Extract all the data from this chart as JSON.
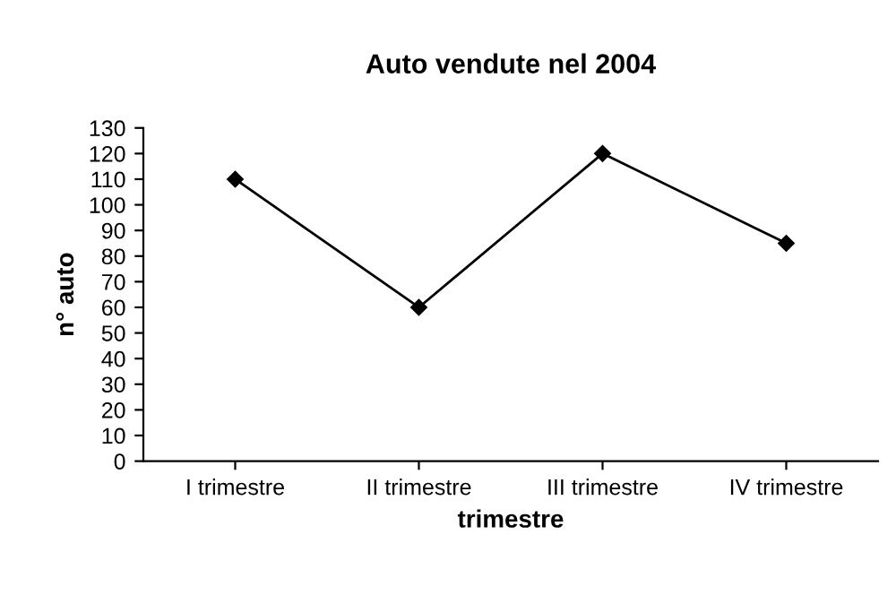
{
  "chart_data": {
    "type": "line",
    "title": "Auto vendute nel 2004",
    "xlabel": "trimestre",
    "ylabel": "n° auto",
    "categories": [
      "I trimestre",
      "II trimestre",
      "III trimestre",
      "IV trimestre"
    ],
    "values": [
      110,
      60,
      120,
      85
    ],
    "color": "#000000",
    "ylim": [
      0,
      130
    ],
    "yticks": [
      0,
      10,
      20,
      30,
      40,
      50,
      60,
      70,
      80,
      90,
      100,
      110,
      120,
      130
    ],
    "grid": false,
    "legend": false,
    "marker": "diamond",
    "line_style": "solid"
  }
}
